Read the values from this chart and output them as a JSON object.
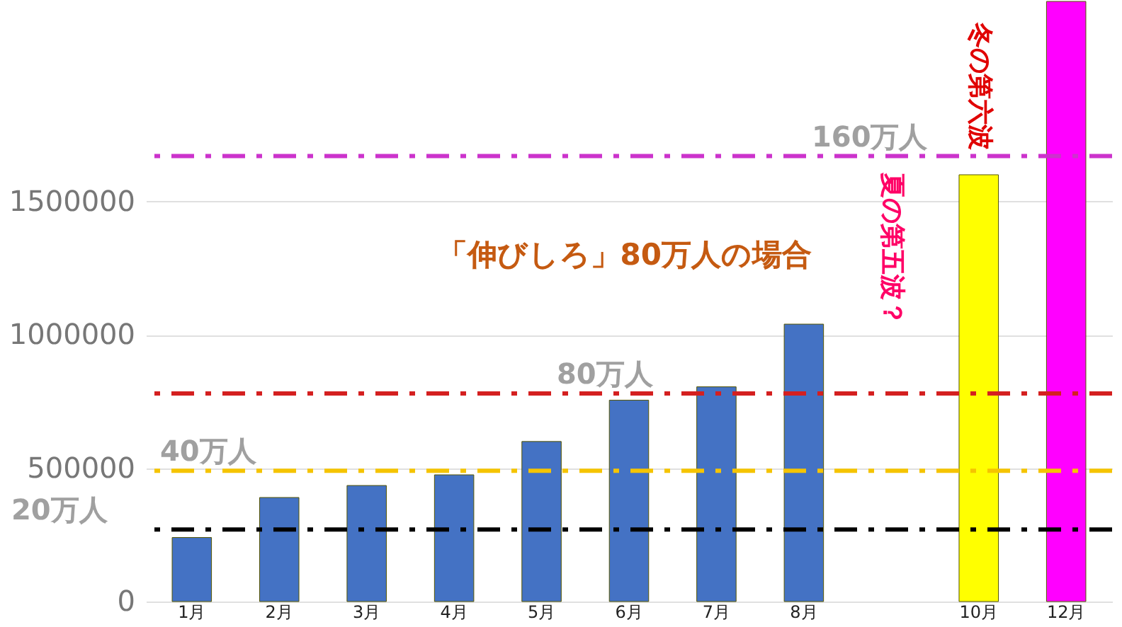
{
  "chart_data": {
    "type": "bar",
    "categories": [
      "1月",
      "2月",
      "3月",
      "4月",
      "5月",
      "6月",
      "7月",
      "8月",
      null,
      "10月",
      "12月"
    ],
    "values": [
      240000,
      390000,
      435000,
      475000,
      600000,
      755000,
      805000,
      1040000,
      null,
      1600000,
      2250000
    ],
    "colors": [
      "#4472c4",
      "#4472c4",
      "#4472c4",
      "#4472c4",
      "#4472c4",
      "#4472c4",
      "#4472c4",
      "#4472c4",
      "#4472c4",
      "#ffff00",
      "#ff00ff"
    ],
    "ylim": [
      0,
      2250000
    ],
    "yticks": [
      0,
      500000,
      1000000,
      1500000
    ],
    "grid": "y",
    "ref_lines": [
      {
        "axis": "y",
        "value": 270000,
        "label": "20万人",
        "color": "#000000",
        "line_style": "dashed"
      },
      {
        "axis": "y",
        "value": 490000,
        "label": "40万人",
        "color": "#f5c400",
        "line_style": "dashed"
      },
      {
        "axis": "y",
        "value": 780000,
        "label": "80万人",
        "color": "#d42020",
        "line_style": "dashed"
      },
      {
        "axis": "y",
        "value": 1670000,
        "label": "160万人",
        "color": "#cc33cc",
        "line_style": "dashed"
      }
    ],
    "annotations": [
      "「伸びしろ」80万人の場合",
      "夏の第五波？",
      "冬の第六波"
    ]
  }
}
